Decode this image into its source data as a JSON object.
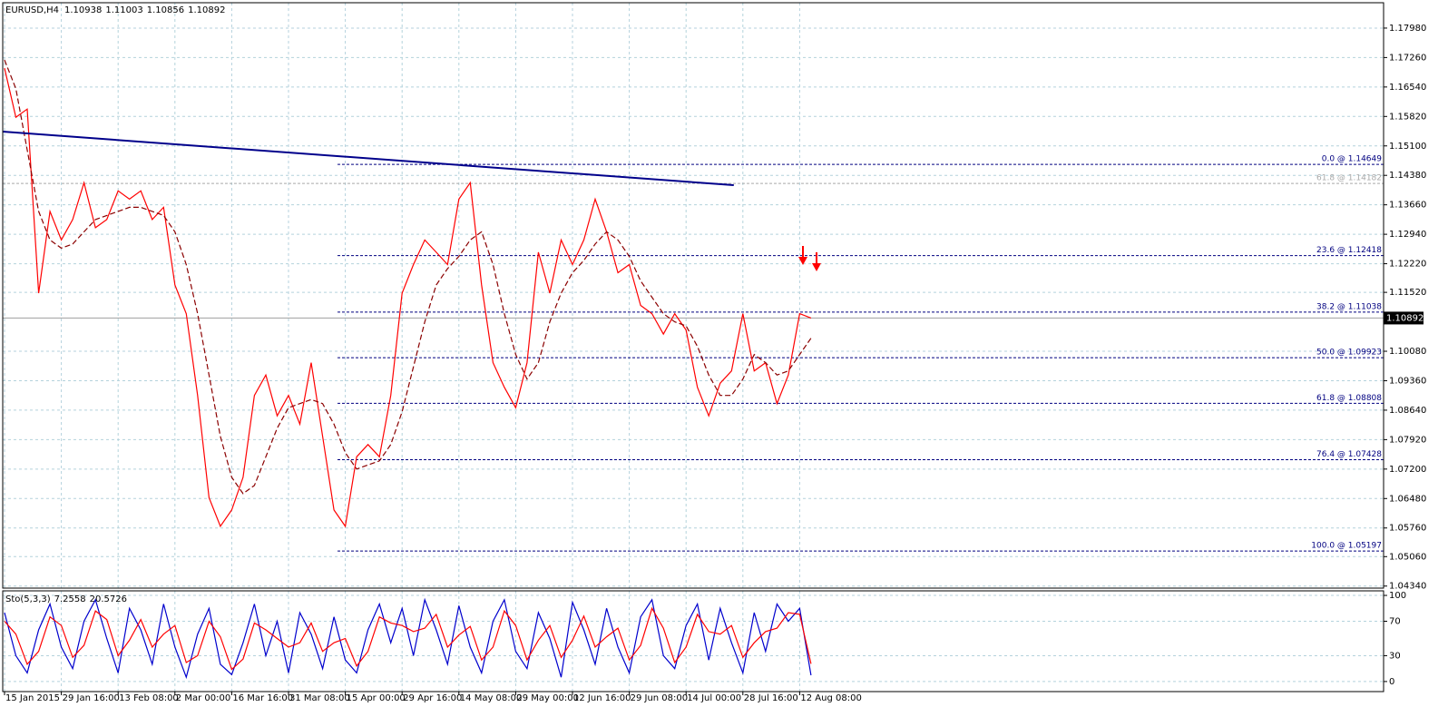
{
  "header": {
    "symbol": "EURUSD,H4",
    "values": [
      1.10938,
      1.11003,
      1.10856
    ]
  },
  "chart_data": [
    {
      "type": "line",
      "categories": [
        "15 Jan 2015",
        null,
        null,
        null,
        null,
        "29 Jan 16:00",
        null,
        null,
        null,
        null,
        "13 Feb 08:00",
        null,
        null,
        null,
        null,
        "2 Mar 00:00",
        null,
        null,
        null,
        null,
        "16 Mar 16:00",
        null,
        null,
        null,
        null,
        "31 Mar 08:00",
        null,
        null,
        null,
        null,
        "15 Apr 00:00",
        null,
        null,
        null,
        null,
        "29 Apr 16:00",
        null,
        null,
        null,
        null,
        "14 May 08:00",
        null,
        null,
        null,
        null,
        "29 May 00:00",
        null,
        null,
        null,
        null,
        "12 Jun 16:00",
        null,
        null,
        null,
        null,
        "29 Jun 08:00",
        null,
        null,
        null,
        null,
        "14 Jul 00:00",
        null,
        null,
        null,
        null,
        "28 Jul 16:00",
        null,
        null,
        null,
        null,
        "12 Aug 08:00",
        null
      ],
      "series": [
        {
          "color": "#ff0000",
          "values": [
            1.17,
            1.158,
            1.16,
            1.115,
            1.135,
            1.128,
            1.133,
            1.142,
            1.131,
            1.133,
            1.14,
            1.138,
            1.14,
            1.133,
            1.136,
            1.117,
            1.11,
            1.09,
            1.065,
            1.058,
            1.062,
            1.07,
            1.09,
            1.095,
            1.085,
            1.09,
            1.083,
            1.098,
            1.08,
            1.062,
            1.058,
            1.075,
            1.078,
            1.075,
            1.09,
            1.115,
            1.122,
            1.128,
            1.125,
            1.122,
            1.138,
            1.142,
            1.117,
            1.098,
            1.092,
            1.087,
            1.098,
            1.125,
            1.115,
            1.128,
            1.122,
            1.128,
            1.138,
            1.13,
            1.12,
            1.122,
            1.112,
            1.11,
            1.105,
            1.11,
            1.106,
            1.092,
            1.085,
            1.093,
            1.096,
            1.11,
            1.096,
            1.098,
            1.088,
            1.095,
            1.11,
            1.10892
          ]
        },
        {
          "color": "#8b0000",
          "dashed": true,
          "values": [
            1.172,
            1.165,
            1.15,
            1.135,
            1.128,
            1.126,
            1.127,
            1.13,
            1.133,
            1.134,
            1.135,
            1.136,
            1.136,
            1.135,
            1.134,
            1.13,
            1.122,
            1.11,
            1.095,
            1.08,
            1.07,
            1.066,
            1.068,
            1.075,
            1.082,
            1.087,
            1.088,
            1.089,
            1.088,
            1.083,
            1.076,
            1.072,
            1.073,
            1.074,
            1.078,
            1.086,
            1.097,
            1.108,
            1.117,
            1.121,
            1.124,
            1.128,
            1.13,
            1.122,
            1.11,
            1.1,
            1.094,
            1.098,
            1.108,
            1.115,
            1.12,
            1.123,
            1.127,
            1.13,
            1.128,
            1.124,
            1.118,
            1.114,
            1.11,
            1.108,
            1.107,
            1.102,
            1.095,
            1.09,
            1.09,
            1.094,
            1.1,
            1.098,
            1.095,
            1.096,
            1.1,
            1.104
          ]
        }
      ],
      "ylim": [
        1.0429,
        1.186
      ],
      "yticks": [
        {
          "value": 1.1798,
          "label": "1.17980"
        },
        {
          "value": 1.1726,
          "label": "1.17260"
        },
        {
          "value": 1.1654,
          "label": "1.16540"
        },
        {
          "value": 1.1582,
          "label": "1.15820"
        },
        {
          "value": 1.151,
          "label": "1.15100"
        },
        {
          "value": 1.1438,
          "label": "1.14380"
        },
        {
          "value": 1.1366,
          "label": "1.13660"
        },
        {
          "value": 1.1294,
          "label": "1.12940"
        },
        {
          "value": 1.1222,
          "label": "1.12220"
        },
        {
          "value": 1.1152,
          "label": "1.11520"
        },
        {
          "value": 1.1008,
          "label": "1.10080"
        },
        {
          "value": 1.0936,
          "label": "1.09360"
        },
        {
          "value": 1.0864,
          "label": "1.08640"
        },
        {
          "value": 1.0792,
          "label": "1.07920"
        },
        {
          "value": 1.072,
          "label": "1.07200"
        },
        {
          "value": 1.0648,
          "label": "1.06480"
        },
        {
          "value": 1.0576,
          "label": "1.05760"
        },
        {
          "value": 1.0506,
          "label": "1.05060"
        },
        {
          "value": 1.0434,
          "label": "1.04340"
        }
      ],
      "grid": true,
      "trendline": {
        "color": "#00008b",
        "x": [
          0,
          64.2
        ],
        "values": [
          1.1545,
          1.1414
        ]
      },
      "fib_levels": [
        {
          "label": "0.0 @ 1.14649",
          "value": 1.14649,
          "color": "#000080"
        },
        {
          "label": "61.8 @ 1.14182",
          "value": 1.14182,
          "color": "#a9a9a9"
        },
        {
          "label": "23.6 @ 1.12418",
          "value": 1.12418,
          "color": "#000080"
        },
        {
          "label": "38.2 @ 1.11038",
          "value": 1.11038,
          "color": "#000080"
        },
        {
          "label": "50.0 @ 1.09923",
          "value": 1.09923,
          "color": "#000080"
        },
        {
          "label": "61.8 @ 1.08808",
          "value": 1.08808,
          "color": "#000080"
        },
        {
          "label": "76.4 @ 1.07428",
          "value": 1.07428,
          "color": "#000080"
        },
        {
          "label": "100.0 @ 1.05197",
          "value": 1.05197,
          "color": "#000080"
        }
      ]
    },
    {
      "type": "line",
      "title": "Sto(5,3,3)",
      "series": [
        {
          "color": "#0000cd",
          "values": [
            80,
            30,
            10,
            60,
            90,
            40,
            15,
            70,
            95,
            50,
            10,
            85,
            60,
            20,
            90,
            40,
            5,
            55,
            85,
            20,
            8,
            45,
            90,
            30,
            70,
            10,
            80,
            55,
            15,
            75,
            25,
            10,
            60,
            90,
            45,
            85,
            30,
            95,
            60,
            20,
            88,
            40,
            10,
            70,
            95,
            35,
            15,
            80,
            50,
            5,
            92,
            60,
            20,
            85,
            40,
            10,
            75,
            95,
            30,
            15,
            65,
            90,
            25,
            85,
            45,
            10,
            80,
            35,
            90,
            70,
            85,
            7.2558
          ]
        },
        {
          "color": "#ff0000",
          "values": [
            70,
            55,
            20,
            35,
            75,
            65,
            28,
            42,
            82,
            72,
            30,
            48,
            72,
            40,
            55,
            65,
            22,
            30,
            70,
            52,
            14,
            26,
            68,
            60,
            50,
            40,
            45,
            68,
            35,
            45,
            50,
            18,
            35,
            75,
            68,
            65,
            58,
            62,
            78,
            40,
            54,
            64,
            25,
            40,
            82,
            65,
            25,
            48,
            65,
            28,
            48,
            76,
            40,
            52,
            62,
            25,
            42,
            85,
            62,
            22,
            40,
            78,
            58,
            55,
            65,
            28,
            45,
            58,
            62,
            80,
            78,
            20.5726
          ]
        }
      ],
      "ylim": [
        -11.7,
        105.3
      ],
      "yticks": [
        0,
        30,
        70,
        100
      ],
      "grid": true
    }
  ]
}
